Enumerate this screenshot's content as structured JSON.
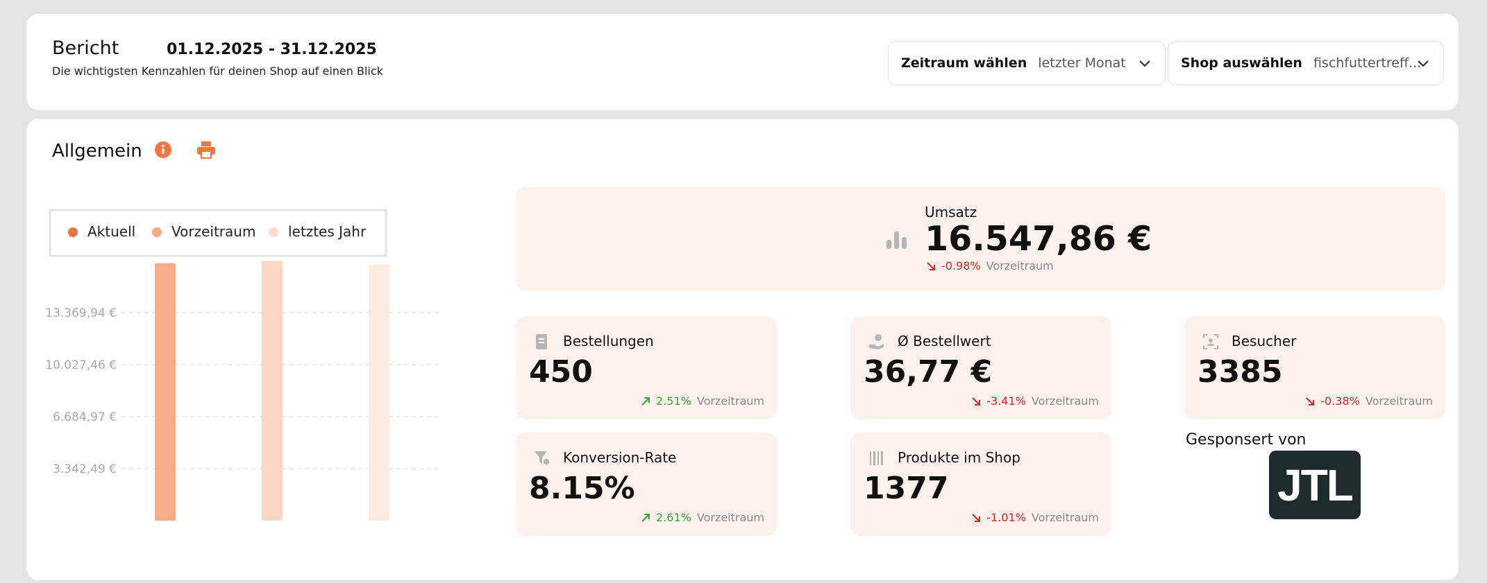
{
  "header": {
    "title": "Bericht",
    "date_range": "01.12.2025 - 31.12.2025",
    "subtitle": "Die wichtigsten Kennzahlen für deinen Shop auf einen Blick"
  },
  "filters": [
    {
      "label": "Zeitraum wählen",
      "value": "letzter Monat"
    },
    {
      "label": "Shop auswählen",
      "value": "fischfuttertreff..."
    }
  ],
  "section": {
    "title": "Allgemein"
  },
  "chart": {
    "type": "bar",
    "series": [
      {
        "name": "Aktuell",
        "color": "#f7ad8a",
        "dot": "#ef7640",
        "values": [
          16547.86
        ]
      },
      {
        "name": "Vorzeitraum",
        "color": "#fbd8c6",
        "dot": "#f5ab88",
        "values": [
          16711
        ]
      },
      {
        "name": "letztes Jahr",
        "color": "#fdeae0",
        "dot": "#fbdccd",
        "values": [
          16470
        ]
      }
    ],
    "ylim": [
      0,
      17000
    ],
    "yticks": [
      {
        "value": 3342.49,
        "label": "3.342,49 €"
      },
      {
        "value": 6684.97,
        "label": "6.684,97 €"
      },
      {
        "value": 10027.46,
        "label": "10.027,46 €"
      },
      {
        "value": 13369.94,
        "label": "13.369,94 €"
      }
    ],
    "grid": true
  },
  "kpis": {
    "main": {
      "label": "Umsatz",
      "value": "16.547,86 €",
      "change": "-0.98%",
      "compare": "Vorzeitraum"
    },
    "cards": [
      {
        "label": "Bestellungen",
        "value": "450",
        "change": "2.51%",
        "compare": "Vorzeitraum"
      },
      {
        "label": "Ø Bestellwert",
        "value": "36,77 €",
        "change": "-3.41%",
        "compare": "Vorzeitraum"
      },
      {
        "label": "Besucher",
        "value": "3385",
        "change": "-0.38%",
        "compare": "Vorzeitraum"
      },
      {
        "label": "Konversion-Rate",
        "value": "8.15%",
        "change": "2.61%",
        "compare": "Vorzeitraum"
      },
      {
        "label": "Produkte im Shop",
        "value": "1377",
        "change": "-1.01%",
        "compare": "Vorzeitraum"
      }
    ]
  },
  "sponsor": {
    "label": "Gesponsert von",
    "logo": "JTL"
  }
}
